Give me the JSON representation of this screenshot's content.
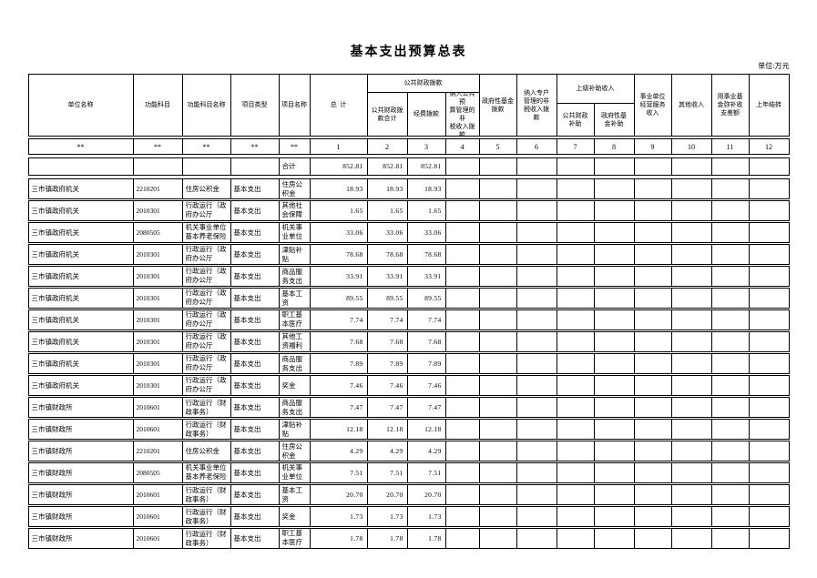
{
  "page": {
    "title": "基本支出预算总表",
    "unit_note": "单位:万元"
  },
  "table": {
    "group_headers": {
      "public_finance": "公共财政拨款",
      "superior_subsidy": "上级补助收入"
    },
    "columns": [
      {
        "id": "unit_name",
        "label": "单位名称"
      },
      {
        "id": "func_code",
        "label": "功能科目"
      },
      {
        "id": "func_name",
        "label": "功能科目名称"
      },
      {
        "id": "proj_type",
        "label": "项目类型"
      },
      {
        "id": "proj_name",
        "label": "项目名称"
      },
      {
        "id": "total",
        "label": "总  计"
      },
      {
        "id": "public_finance_total",
        "label": "公共财政拨\n款合计"
      },
      {
        "id": "expense_alloc",
        "label": "经费拨款"
      },
      {
        "id": "nontax_public_budget_alloc",
        "label": "纳入公共预\n算管理的非\n税收入拨款"
      },
      {
        "id": "gov_fund_alloc",
        "label": "政府性基金\n拨款"
      },
      {
        "id": "nontax_special_account_alloc",
        "label": "纳入专户\n管理的非\n税收入拨\n款"
      },
      {
        "id": "public_finance_subsidy",
        "label": "公共财政\n补助"
      },
      {
        "id": "gov_fund_subsidy",
        "label": "政府性基\n金补助"
      },
      {
        "id": "business_service_income",
        "label": "事业单位\n经营服务\n收入"
      },
      {
        "id": "other_income",
        "label": "其他收入"
      },
      {
        "id": "fund_offset_balance",
        "label": "用事业基\n金弥补收\n支差额"
      },
      {
        "id": "prev_year_carryover",
        "label": "上年结转"
      }
    ],
    "mask_row": [
      "**",
      "**",
      "**",
      "**",
      "**",
      "1",
      "2",
      "3",
      "4",
      "5",
      "6",
      "7",
      "8",
      "9",
      "10",
      "11",
      "12"
    ],
    "rows": [
      {
        "unit": "",
        "func_code": "",
        "func_name": "",
        "proj_type": "",
        "proj_name": "合计",
        "amounts": [
          "852.81",
          "852.81",
          "852.81"
        ]
      },
      {
        "unit": "三市镇政府机关",
        "func_code": "2210201",
        "func_name": "住房公积金",
        "proj_type": "基本支出",
        "proj_name": "住房公积金",
        "amounts": [
          "18.93",
          "18.93",
          "18.93"
        ]
      },
      {
        "unit": "三市镇政府机关",
        "func_code": "2010301",
        "func_name": "行政运行（政\n府办公厅\n及相关机构事务）",
        "proj_type": "基本支出",
        "proj_name": "其他社会保障缴费",
        "amounts": [
          "1.65",
          "1.65",
          "1.65"
        ]
      },
      {
        "unit": "三市镇政府机关",
        "func_code": "2080505",
        "func_name": "机关事业单位\n基本养老保险\n缴费支出",
        "proj_type": "基本支出",
        "proj_name": "机关事业单位基本养老保险缴费",
        "amounts": [
          "33.06",
          "33.06",
          "33.06"
        ]
      },
      {
        "unit": "三市镇政府机关",
        "func_code": "2010301",
        "func_name": "行政运行（政\n府办公厅\n及相关机构事务）",
        "proj_type": "基本支出",
        "proj_name": "津贴补贴",
        "amounts": [
          "78.68",
          "78.68",
          "78.68"
        ]
      },
      {
        "unit": "三市镇政府机关",
        "func_code": "2010301",
        "func_name": "行政运行（政\n府办公厅\n及相关机构事务）",
        "proj_type": "基本支出",
        "proj_name": "商品服务支出",
        "amounts": [
          "33.91",
          "33.91",
          "33.91"
        ]
      },
      {
        "unit": "三市镇政府机关",
        "func_code": "2010301",
        "func_name": "行政运行（政\n府办公厅\n及相关机构事务）",
        "proj_type": "基本支出",
        "proj_name": "基本工资",
        "amounts": [
          "89.55",
          "89.55",
          "89.55"
        ]
      },
      {
        "unit": "三市镇政府机关",
        "func_code": "2010301",
        "func_name": "行政运行（政\n府办公厅\n及相关机构事务）",
        "proj_type": "基本支出",
        "proj_name": "职工基本医疗保险缴费",
        "amounts": [
          "7.74",
          "7.74",
          "7.74"
        ]
      },
      {
        "unit": "三市镇政府机关",
        "func_code": "2010301",
        "func_name": "行政运行（政\n府办公厅\n及相关机构事务）",
        "proj_type": "基本支出",
        "proj_name": "其他工资福利支出",
        "amounts": [
          "7.68",
          "7.68",
          "7.68"
        ]
      },
      {
        "unit": "三市镇政府机关",
        "func_code": "2010301",
        "func_name": "行政运行（政\n府办公厅\n及相关机构事务）",
        "proj_type": "基本支出",
        "proj_name": "商品服务支出",
        "amounts": [
          "7.89",
          "7.89",
          "7.89"
        ]
      },
      {
        "unit": "三市镇政府机关",
        "func_code": "2010301",
        "func_name": "行政运行（政\n府办公厅\n及相关机构事务）",
        "proj_type": "基本支出",
        "proj_name": "奖金",
        "amounts": [
          "7.46",
          "7.46",
          "7.46"
        ]
      },
      {
        "unit": "三市镇财政所",
        "func_code": "2010601",
        "func_name": "行政运行（财\n政事务）",
        "proj_type": "基本支出",
        "proj_name": "商品服务支出",
        "amounts": [
          "7.47",
          "7.47",
          "7.47"
        ]
      },
      {
        "unit": "三市镇财政所",
        "func_code": "2010601",
        "func_name": "行政运行（财\n政事务）",
        "proj_type": "基本支出",
        "proj_name": "津贴补贴",
        "amounts": [
          "12.18",
          "12.18",
          "12.18"
        ]
      },
      {
        "unit": "三市镇财政所",
        "func_code": "2210201",
        "func_name": "住房公积金",
        "proj_type": "基本支出",
        "proj_name": "住房公积金",
        "amounts": [
          "4.29",
          "4.29",
          "4.29"
        ]
      },
      {
        "unit": "三市镇财政所",
        "func_code": "2080505",
        "func_name": "机关事业单位\n基本养老保险\n缴费支出",
        "proj_type": "基本支出",
        "proj_name": "机关事业单位基本养老保险缴费",
        "amounts": [
          "7.51",
          "7.51",
          "7.51"
        ]
      },
      {
        "unit": "三市镇财政所",
        "func_code": "2010601",
        "func_name": "行政运行（财\n政事务）",
        "proj_type": "基本支出",
        "proj_name": "基本工资",
        "amounts": [
          "20.70",
          "20.70",
          "20.70"
        ]
      },
      {
        "unit": "三市镇财政所",
        "func_code": "2010601",
        "func_name": "行政运行（财\n政事务）",
        "proj_type": "基本支出",
        "proj_name": "奖金",
        "amounts": [
          "1.73",
          "1.73",
          "1.73"
        ]
      },
      {
        "unit": "三市镇财政所",
        "func_code": "2010601",
        "func_name": "行政运行（财\n政事务）",
        "proj_type": "基本支出",
        "proj_name": "职工基本医疗保险缴费",
        "amounts": [
          "1.78",
          "1.78",
          "1.78"
        ]
      }
    ]
  }
}
